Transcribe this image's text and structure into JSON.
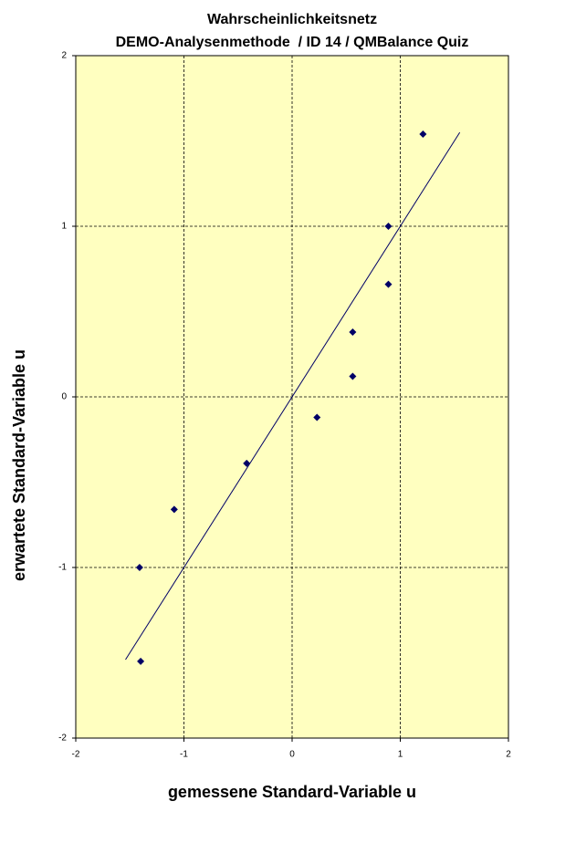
{
  "chart_data": {
    "type": "scatter",
    "title": "Wahrscheinlichkeitsnetz",
    "subtitle": "DEMO-Analysenmethode  / ID 14 / QMBalance Quiz",
    "x_label": "gemessene Standard-Variable u",
    "y_label": "erwartete Standard-Variable u",
    "xlim": [
      -2,
      2
    ],
    "ylim": [
      -2,
      2
    ],
    "xticks": [
      -2,
      -1,
      0,
      1,
      2
    ],
    "yticks": [
      -2,
      -1,
      0,
      1,
      2
    ],
    "grid": true,
    "background": "#ffffc0",
    "series": [
      {
        "color": "#000066",
        "x": [
          -1.4,
          -1.41,
          -1.09,
          -0.42,
          0.23,
          0.56,
          0.56,
          0.89,
          0.89,
          1.21
        ],
        "values": [
          -1.55,
          -1.0,
          -0.66,
          -0.39,
          -0.12,
          0.12,
          0.38,
          0.66,
          1.0,
          1.54
        ]
      },
      {
        "color": "#000066",
        "kind": "line",
        "x": [
          -1.54,
          1.55
        ],
        "values": [
          -1.54,
          1.55
        ]
      }
    ]
  }
}
